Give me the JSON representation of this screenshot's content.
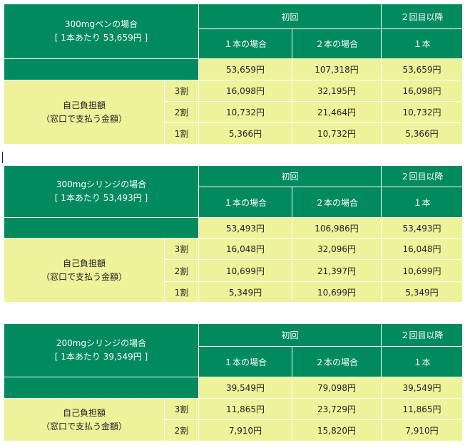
{
  "tables": [
    {
      "title": "300mgペンの場合",
      "unit_note": "[ 1本あたり 53,659円 ]",
      "header_first": "初回",
      "header_later": "２回目以降",
      "sub_one": "１本の場合",
      "sub_two": "２本の場合",
      "sub_later": "１本",
      "prices": [
        "53,659円",
        "107,318円",
        "53,659円"
      ],
      "burden_label": "自己負担額",
      "burden_note": "（窓口で支払う金額）",
      "rows": [
        {
          "rate": "3割",
          "one": "16,098円",
          "two": "32,195円",
          "later": "16,098円"
        },
        {
          "rate": "2割",
          "one": "10,732円",
          "two": "21,464円",
          "later": "10,732円"
        },
        {
          "rate": "1割",
          "one": "5,366円",
          "two": "10,732円",
          "later": "5,366円"
        }
      ]
    },
    {
      "title": "300mgシリンジの場合",
      "unit_note": "[ 1本あたり 53,493円 ]",
      "header_first": "初回",
      "header_later": "２回目以降",
      "sub_one": "１本の場合",
      "sub_two": "２本の場合",
      "sub_later": "１本",
      "prices": [
        "53,493円",
        "106,986円",
        "53,493円"
      ],
      "burden_label": "自己負担額",
      "burden_note": "（窓口で支払う金額）",
      "rows": [
        {
          "rate": "3割",
          "one": "16,048円",
          "two": "32,096円",
          "later": "16,048円"
        },
        {
          "rate": "2割",
          "one": "10,699円",
          "two": "21,397円",
          "later": "10,699円"
        },
        {
          "rate": "1割",
          "one": "5,349円",
          "two": "10,699円",
          "later": "5,349円"
        }
      ]
    },
    {
      "title": "200mgシリンジの場合",
      "unit_note": "[ 1本あたり 39,549円 ]",
      "header_first": "初回",
      "header_later": "２回目以降",
      "sub_one": "１本の場合",
      "sub_two": "２本の場合",
      "sub_later": "１本",
      "prices": [
        "39,549円",
        "79,098円",
        "39,549円"
      ],
      "burden_label": "自己負担額",
      "burden_note": "（窓口で支払う金額）",
      "rows": [
        {
          "rate": "3割",
          "one": "11,865円",
          "two": "23,729円",
          "later": "11,865円"
        },
        {
          "rate": "2割",
          "one": "7,910円",
          "two": "15,820円",
          "later": "7,910円"
        }
      ]
    }
  ],
  "colors": {
    "header_green": "#008a5e",
    "cell_yellow": "#eef29a",
    "text_white": "#ffffff"
  }
}
